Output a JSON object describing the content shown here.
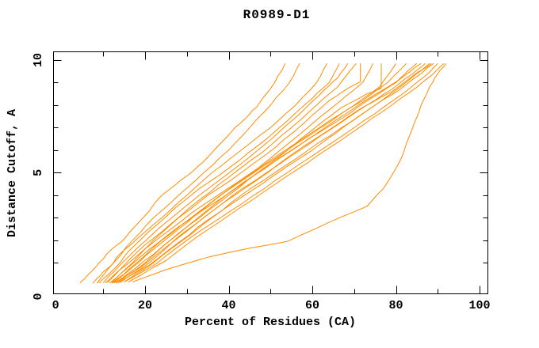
{
  "title": "R0989-D1",
  "colors": {
    "curve": "#ff8c00",
    "axis": "#000000",
    "background": "#ffffff"
  },
  "chart_data": {
    "type": "line",
    "title": "R0989-D1",
    "xlabel": "Percent of Residues (CA)",
    "ylabel": "Distance Cutoff, A",
    "xlim": [
      0,
      100
    ],
    "ylim": [
      0,
      10
    ],
    "x_display_range": [
      -2,
      102
    ],
    "y_display_range": [
      -0.4,
      10.4
    ],
    "grid": false,
    "legend": "none",
    "x_major_ticks": [
      20,
      40,
      60,
      80,
      100
    ],
    "x_minor_ticks": [
      10,
      30,
      50,
      70,
      90
    ],
    "y_major_ticks": [
      5,
      10
    ],
    "y_minor_ticks": [
      1,
      2,
      3,
      4,
      6,
      7,
      8,
      9
    ],
    "x_tick_labels": [
      {
        "text": "0",
        "v": -1.4
      },
      {
        "text": "20",
        "v": 20
      },
      {
        "text": "40",
        "v": 40
      },
      {
        "text": "60",
        "v": 60
      },
      {
        "text": "80",
        "v": 80
      },
      {
        "text": "100",
        "v": 100
      }
    ],
    "y_tick_labels": [
      {
        "text": "0",
        "v": -0.5
      },
      {
        "text": "5",
        "v": 5
      },
      {
        "text": "10",
        "v": 10
      }
    ],
    "series": [
      {
        "points": [
          [
            4.5,
            0.1
          ],
          [
            6,
            0.4
          ],
          [
            9,
            1
          ],
          [
            12,
            1.6
          ],
          [
            15,
            2.05
          ],
          [
            19.5,
            3
          ],
          [
            24,
            4
          ],
          [
            27.5,
            4.5
          ],
          [
            31,
            5
          ],
          [
            34,
            5.5
          ],
          [
            36.5,
            6
          ],
          [
            41.5,
            7
          ],
          [
            45,
            7.6
          ],
          [
            47,
            8
          ],
          [
            51,
            9
          ],
          [
            53.5,
            9.85
          ]
        ]
      },
      {
        "points": [
          [
            7.5,
            0.1
          ],
          [
            10,
            0.6
          ],
          [
            12.5,
            1
          ],
          [
            17,
            2
          ],
          [
            22,
            3
          ],
          [
            28,
            4
          ],
          [
            34,
            5
          ],
          [
            40,
            6
          ],
          [
            45,
            7
          ],
          [
            50,
            8
          ],
          [
            54.5,
            9
          ],
          [
            57,
            9.85
          ]
        ]
      },
      {
        "points": [
          [
            8.5,
            0.1
          ],
          [
            11.5,
            0.8
          ],
          [
            14,
            1.4
          ],
          [
            18,
            2.05
          ],
          [
            24,
            3
          ],
          [
            30,
            4
          ],
          [
            36,
            5
          ],
          [
            43,
            6
          ],
          [
            50,
            7
          ],
          [
            56,
            8
          ],
          [
            61,
            9
          ],
          [
            63.5,
            9.85
          ]
        ]
      },
      {
        "points": [
          [
            9,
            0.1
          ],
          [
            13,
            0.8
          ],
          [
            16,
            1.5
          ],
          [
            21,
            2.4
          ],
          [
            27,
            3.4
          ],
          [
            33,
            4.3
          ],
          [
            40,
            5.2
          ],
          [
            47,
            6.2
          ],
          [
            54,
            7.3
          ],
          [
            60,
            8.3
          ],
          [
            64,
            9
          ],
          [
            66.5,
            9.85
          ]
        ]
      },
      {
        "points": [
          [
            10,
            0.12
          ],
          [
            14,
            0.9
          ],
          [
            19,
            1.8
          ],
          [
            25,
            2.8
          ],
          [
            31,
            3.7
          ],
          [
            38,
            4.7
          ],
          [
            45,
            5.7
          ],
          [
            52,
            6.8
          ],
          [
            58,
            7.8
          ],
          [
            63,
            8.7
          ],
          [
            66,
            9.2
          ],
          [
            68.5,
            9.85
          ]
        ]
      },
      {
        "points": [
          [
            11,
            0.12
          ],
          [
            15,
            0.9
          ],
          [
            20,
            1.8
          ],
          [
            26,
            2.7
          ],
          [
            33,
            3.8
          ],
          [
            40,
            4.8
          ],
          [
            48,
            5.9
          ],
          [
            55,
            7
          ],
          [
            61,
            8
          ],
          [
            66,
            8.8
          ],
          [
            70.5,
            9.85
          ]
        ]
      },
      {
        "points": [
          [
            12,
            0.12
          ],
          [
            17,
            1
          ],
          [
            22,
            2
          ],
          [
            28,
            3
          ],
          [
            35,
            4
          ],
          [
            43,
            5
          ],
          [
            51,
            6.1
          ],
          [
            58,
            7.2
          ],
          [
            64,
            8.2
          ],
          [
            69,
            8.8
          ],
          [
            71.5,
            9.05
          ],
          [
            71.5,
            9.85
          ]
        ]
      },
      {
        "points": [
          [
            10.5,
            0.1
          ],
          [
            14,
            0.7
          ],
          [
            18,
            1.3
          ],
          [
            24,
            2.2
          ],
          [
            31,
            3.2
          ],
          [
            39,
            4.2
          ],
          [
            47,
            5.2
          ],
          [
            55,
            6.4
          ],
          [
            62,
            7.5
          ],
          [
            68,
            8.4
          ],
          [
            72,
            9
          ],
          [
            74.5,
            9.85
          ]
        ]
      },
      {
        "points": [
          [
            11.5,
            0.1
          ],
          [
            16,
            0.8
          ],
          [
            21,
            1.6
          ],
          [
            28,
            2.6
          ],
          [
            36,
            3.6
          ],
          [
            44,
            4.6
          ],
          [
            52,
            5.7
          ],
          [
            60,
            6.9
          ],
          [
            67,
            7.9
          ],
          [
            73,
            8.5
          ],
          [
            76.5,
            8.75
          ],
          [
            76.5,
            9.85
          ]
        ]
      },
      {
        "points": [
          [
            12.5,
            0.12
          ],
          [
            18,
            1
          ],
          [
            24,
            2
          ],
          [
            31,
            3
          ],
          [
            38,
            4
          ],
          [
            46,
            5
          ],
          [
            54,
            6
          ],
          [
            62,
            7
          ],
          [
            70,
            8
          ],
          [
            76,
            8.8
          ],
          [
            80,
            9.85
          ]
        ]
      },
      {
        "points": [
          [
            12,
            0.1
          ],
          [
            17,
            0.8
          ],
          [
            22,
            1.6
          ],
          [
            28,
            2.5
          ],
          [
            34,
            3.4
          ],
          [
            41,
            4.4
          ],
          [
            48,
            5.3
          ],
          [
            56,
            6.3
          ],
          [
            64,
            7.3
          ],
          [
            72,
            8.2
          ],
          [
            78,
            9
          ],
          [
            82.5,
            9.85
          ]
        ]
      },
      {
        "points": [
          [
            13,
            0.1
          ],
          [
            18,
            0.8
          ],
          [
            24,
            1.7
          ],
          [
            30,
            2.6
          ],
          [
            36,
            3.5
          ],
          [
            43,
            4.5
          ],
          [
            51,
            5.5
          ],
          [
            59,
            6.5
          ],
          [
            67,
            7.4
          ],
          [
            74,
            8.3
          ],
          [
            80,
            9
          ],
          [
            85,
            9.85
          ]
        ]
      },
      {
        "points": [
          [
            13.5,
            0.12
          ],
          [
            20,
            1
          ],
          [
            26,
            2
          ],
          [
            33,
            3
          ],
          [
            40,
            4
          ],
          [
            47,
            5
          ],
          [
            55,
            6
          ],
          [
            63,
            7
          ],
          [
            71,
            8
          ],
          [
            78,
            8.8
          ],
          [
            82,
            9.3
          ],
          [
            86,
            9.85
          ]
        ]
      },
      {
        "points": [
          [
            14,
            0.12
          ],
          [
            21,
            1
          ],
          [
            27,
            2
          ],
          [
            34,
            3
          ],
          [
            41,
            4
          ],
          [
            49,
            5
          ],
          [
            57,
            6
          ],
          [
            65,
            7
          ],
          [
            73,
            8
          ],
          [
            79,
            8.7
          ],
          [
            84,
            9.4
          ],
          [
            87,
            9.85
          ]
        ]
      },
      {
        "points": [
          [
            15,
            0.15
          ],
          [
            22,
            1
          ],
          [
            29,
            2
          ],
          [
            36,
            3
          ],
          [
            43,
            4
          ],
          [
            51,
            5
          ],
          [
            59,
            6
          ],
          [
            67,
            7
          ],
          [
            75,
            8
          ],
          [
            81,
            8.8
          ],
          [
            85,
            9.4
          ],
          [
            88,
            9.85
          ]
        ]
      },
      {
        "points": [
          [
            12.5,
            0.1
          ],
          [
            19,
            0.8
          ],
          [
            25,
            1.7
          ],
          [
            32,
            2.7
          ],
          [
            39,
            3.7
          ],
          [
            47,
            4.7
          ],
          [
            55,
            5.8
          ],
          [
            64,
            6.9
          ],
          [
            72,
            7.9
          ],
          [
            79,
            8.6
          ],
          [
            84,
            9.3
          ],
          [
            88.5,
            9.85
          ]
        ]
      },
      {
        "points": [
          [
            13.5,
            0.12
          ],
          [
            21,
            0.9
          ],
          [
            28,
            1.9
          ],
          [
            35,
            2.9
          ],
          [
            43,
            3.9
          ],
          [
            51,
            4.9
          ],
          [
            60,
            6
          ],
          [
            68,
            7.1
          ],
          [
            75,
            8
          ],
          [
            81,
            8.7
          ],
          [
            86,
            9.4
          ],
          [
            89,
            9.85
          ]
        ]
      },
      {
        "points": [
          [
            15,
            0.15
          ],
          [
            23,
            1
          ],
          [
            30,
            2
          ],
          [
            38,
            3
          ],
          [
            46,
            4
          ],
          [
            54,
            5
          ],
          [
            62,
            6
          ],
          [
            70,
            7
          ],
          [
            77,
            7.9
          ],
          [
            83,
            8.7
          ],
          [
            87,
            9.3
          ],
          [
            90,
            9.85
          ]
        ]
      },
      {
        "points": [
          [
            16,
            0.15
          ],
          [
            25,
            1.1
          ],
          [
            32,
            2.1
          ],
          [
            40,
            3.1
          ],
          [
            48,
            4.1
          ],
          [
            56,
            5.1
          ],
          [
            64,
            6.1
          ],
          [
            72,
            7.1
          ],
          [
            79,
            8
          ],
          [
            85,
            8.8
          ],
          [
            89,
            9.4
          ],
          [
            91.5,
            9.85
          ]
        ]
      },
      {
        "points": [
          [
            17,
            0.15
          ],
          [
            25,
            0.7
          ],
          [
            35,
            1.25
          ],
          [
            45,
            1.65
          ],
          [
            54,
            1.95
          ],
          [
            64,
            2.8
          ],
          [
            73,
            3.5
          ],
          [
            77,
            4.3
          ],
          [
            80,
            5.2
          ],
          [
            82,
            6
          ],
          [
            84,
            7
          ],
          [
            86,
            8
          ],
          [
            88,
            8.8
          ],
          [
            90,
            9.4
          ],
          [
            92,
            9.85
          ]
        ]
      }
    ]
  }
}
